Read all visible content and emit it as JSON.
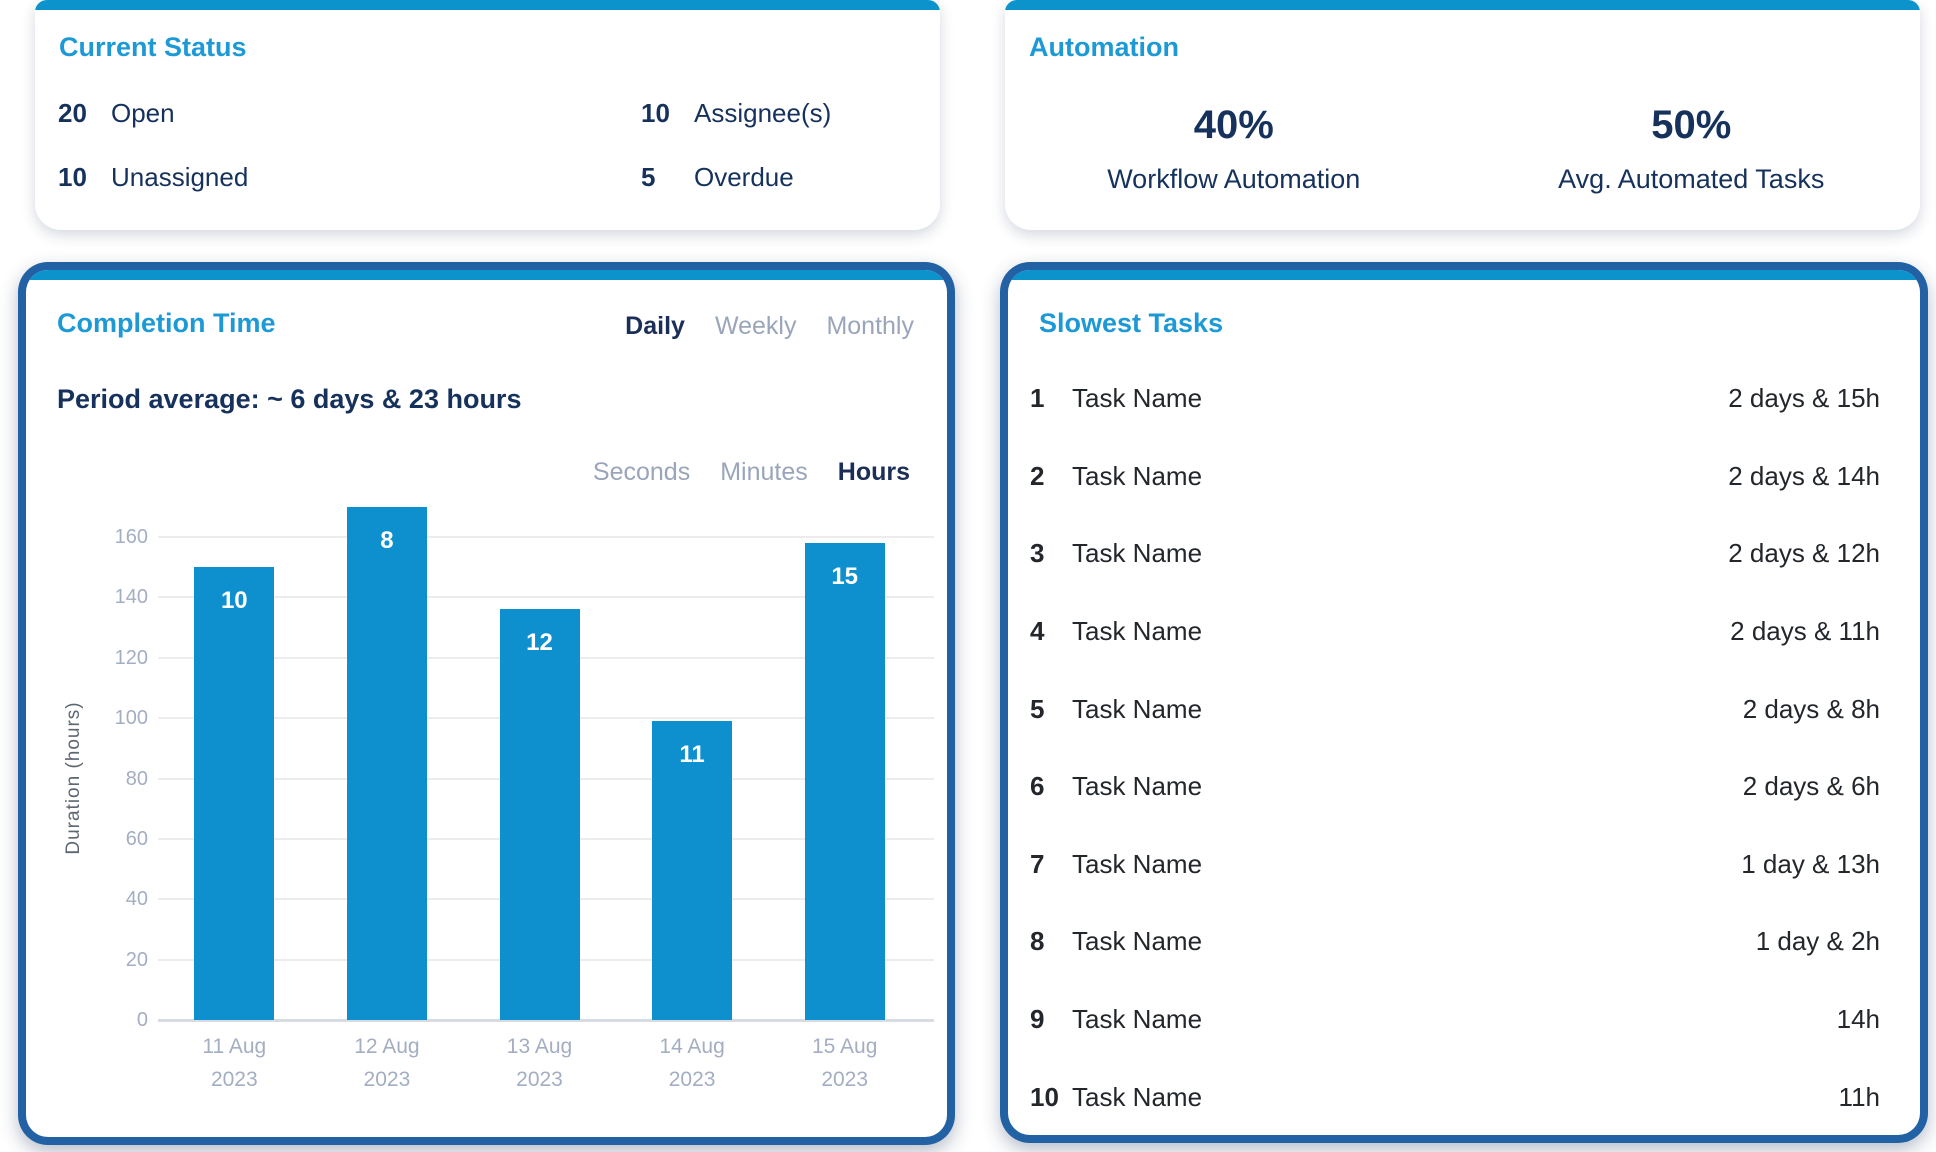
{
  "cards": {
    "current_status": {
      "title": "Current Status",
      "stats": [
        {
          "value": "20",
          "label": "Open"
        },
        {
          "value": "10",
          "label": "Unassigned"
        },
        {
          "value": "10",
          "label": "Assignee(s)"
        },
        {
          "value": "5",
          "label": "Overdue"
        }
      ]
    },
    "automation": {
      "title": "Automation",
      "metrics": [
        {
          "value": "40%",
          "label": "Workflow Automation"
        },
        {
          "value": "50%",
          "label": "Avg. Automated Tasks"
        }
      ]
    },
    "completion_time": {
      "title": "Completion Time",
      "period_tabs": [
        {
          "label": "Daily",
          "active": true
        },
        {
          "label": "Weekly",
          "active": false
        },
        {
          "label": "Monthly",
          "active": false
        }
      ],
      "period_average": "Period average: ~ 6 days & 23 hours",
      "unit_tabs": [
        {
          "label": "Seconds",
          "active": false
        },
        {
          "label": "Minutes",
          "active": false
        },
        {
          "label": "Hours",
          "active": true
        }
      ]
    },
    "slowest_tasks": {
      "title": "Slowest Tasks",
      "rows": [
        {
          "rank": "1",
          "name": "Task Name",
          "duration": "2 days & 15h"
        },
        {
          "rank": "2",
          "name": "Task Name",
          "duration": "2 days & 14h"
        },
        {
          "rank": "3",
          "name": "Task Name",
          "duration": "2 days & 12h"
        },
        {
          "rank": "4",
          "name": "Task Name",
          "duration": "2 days & 11h"
        },
        {
          "rank": "5",
          "name": "Task Name",
          "duration": "2 days & 8h"
        },
        {
          "rank": "6",
          "name": "Task Name",
          "duration": "2 days & 6h"
        },
        {
          "rank": "7",
          "name": "Task Name",
          "duration": "1 day & 13h"
        },
        {
          "rank": "8",
          "name": "Task Name",
          "duration": "1 day & 2h"
        },
        {
          "rank": "9",
          "name": "Task Name",
          "duration": "14h"
        },
        {
          "rank": "10",
          "name": "Task Name",
          "duration": "11h"
        }
      ]
    }
  },
  "chart_data": {
    "type": "bar",
    "title": "Completion Time",
    "categories": [
      "11 Aug 2023",
      "12 Aug 2023",
      "13 Aug 2023",
      "14 Aug 2023",
      "15 Aug 2023"
    ],
    "values": [
      150,
      170,
      136,
      99,
      158
    ],
    "bar_labels": [
      "10",
      "8",
      "12",
      "11",
      "15"
    ],
    "xlabel": "",
    "ylabel": "Duration (hours)",
    "y_ticks": [
      0,
      20,
      40,
      60,
      80,
      100,
      120,
      140,
      160
    ],
    "ylim": [
      0,
      176
    ],
    "grid": true,
    "legend": false,
    "bar_color": "#0f90ce",
    "selected_period": "Daily",
    "selected_unit": "Hours"
  },
  "colors": {
    "accent_title": "#1d9ad6",
    "topbar_blue": "#0d93cc",
    "bar_blue": "#0f90ce",
    "navy_text": "#16325c",
    "panel_border": "#2161a4",
    "inactive_tab": "#9aa5ba",
    "axis_tick": "#a3aec2",
    "task_text": "#23272c"
  }
}
